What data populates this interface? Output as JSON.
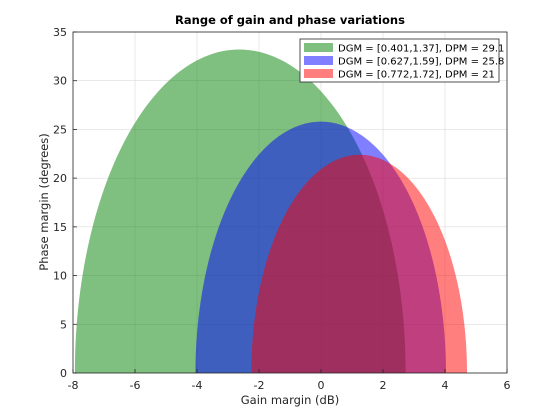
{
  "chart_data": {
    "type": "area",
    "title": "Range of gain and phase variations",
    "xlabel": "Gain margin (dB)",
    "ylabel": "Phase margin (degrees)",
    "xlim": [
      -8,
      6
    ],
    "ylim": [
      0,
      35
    ],
    "xticks": [
      -8,
      -6,
      -4,
      -2,
      0,
      2,
      4,
      6
    ],
    "yticks": [
      0,
      5,
      10,
      15,
      20,
      25,
      30,
      35
    ],
    "grid": true,
    "legend_position": "top-right",
    "series": [
      {
        "name": "DGM = [0.401,1.37], DPM = 29.1",
        "color": "#008000",
        "opacity": 0.5,
        "gm_db_min": -7.94,
        "gm_db_max": 2.73,
        "peak_gm_db": -2.64,
        "peak_pm": 33.2
      },
      {
        "name": "DGM = [0.627,1.59], DPM = 25.8",
        "color": "#0000ff",
        "opacity": 0.5,
        "gm_db_min": -4.05,
        "gm_db_max": 4.03,
        "peak_gm_db": 0.0,
        "peak_pm": 25.8
      },
      {
        "name": "DGM = [0.772,1.72], DPM = 21",
        "color": "#ff0000",
        "opacity": 0.5,
        "gm_db_min": -2.25,
        "gm_db_max": 4.71,
        "peak_gm_db": 1.25,
        "peak_pm": 22.4
      }
    ]
  }
}
